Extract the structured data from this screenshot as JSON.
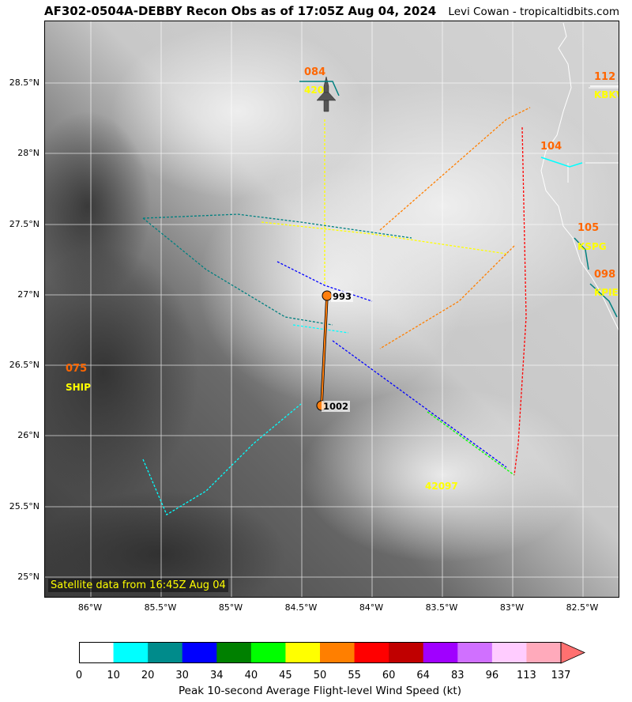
{
  "header": {
    "title": "AF302-0504A-DEBBY Recon Obs as of 17:05Z Aug 04, 2024",
    "credit": "Levi Cowan - tropicaltidbits.com"
  },
  "map": {
    "lat_ticks": [
      "28.5°N",
      "28°N",
      "27.5°N",
      "27°N",
      "26.5°N",
      "26°N",
      "25.5°N",
      "25°N"
    ],
    "lon_ticks": [
      "86°W",
      "85.5°W",
      "85°W",
      "84.5°W",
      "84°W",
      "83.5°W",
      "83°W",
      "82.5°W"
    ],
    "satellite_note": "Satellite data from 16:45Z Aug 04",
    "pressure_center_1": "993",
    "pressure_center_2": "1002",
    "stations": [
      {
        "id": "ship",
        "speed": "075",
        "label": "SHIP"
      },
      {
        "id": "buoy",
        "speed": "",
        "label": "42097"
      },
      {
        "id": "s084",
        "speed": "084",
        "label": "420"
      },
      {
        "id": "s112",
        "speed": "112",
        "label": "KBKV"
      },
      {
        "id": "s104",
        "speed": "104",
        "label": ""
      },
      {
        "id": "s105",
        "speed": "105",
        "label": "KSPG"
      },
      {
        "id": "s098",
        "speed": "098",
        "label": "KPIE"
      }
    ],
    "colors": {
      "track": "#ff7f0e",
      "center_marker": "#ff7f0e",
      "station_speed": "#ff6600",
      "station_label": "#ffff00",
      "coast": "#ffffff"
    }
  },
  "colorbar": {
    "ticks": [
      "0",
      "10",
      "20",
      "30",
      "34",
      "40",
      "45",
      "50",
      "55",
      "60",
      "64",
      "83",
      "96",
      "113",
      "137"
    ],
    "colors": [
      "#ffffff",
      "#00ffff",
      "#008b8b",
      "#0000ff",
      "#008000",
      "#00ff00",
      "#ffff00",
      "#ff7f00",
      "#ff0000",
      "#c00000",
      "#a000ff",
      "#d070ff",
      "#ffccff",
      "#ffaabb"
    ],
    "extend_color": "#ff7070",
    "label": "Peak 10-second Average Flight-level Wind Speed (kt)"
  }
}
